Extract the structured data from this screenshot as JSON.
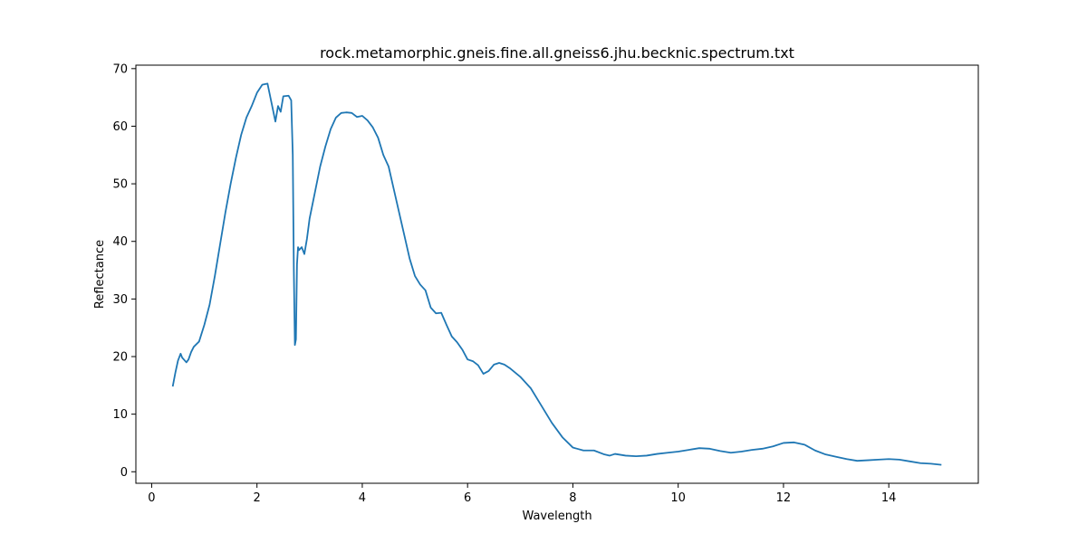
{
  "chart_data": {
    "type": "line",
    "title": "rock.metamorphic.gneis.fine.all.gneiss6.jhu.becknic.spectrum.txt",
    "xlabel": "Wavelength",
    "ylabel": "Reflectance",
    "xlim": [
      -0.3,
      15.7
    ],
    "ylim": [
      -2.0,
      70.6
    ],
    "xticks": [
      0,
      2,
      4,
      6,
      8,
      10,
      12,
      14
    ],
    "yticks": [
      0,
      10,
      20,
      30,
      40,
      50,
      60,
      70
    ],
    "grid": false,
    "legend": "none",
    "series": [
      {
        "color": "#1f77b4",
        "x": [
          0.4,
          0.45,
          0.5,
          0.55,
          0.58,
          0.62,
          0.66,
          0.7,
          0.75,
          0.8,
          0.9,
          1.0,
          1.1,
          1.2,
          1.3,
          1.4,
          1.5,
          1.6,
          1.7,
          1.8,
          1.9,
          2.0,
          2.1,
          2.2,
          2.3,
          2.35,
          2.4,
          2.45,
          2.5,
          2.6,
          2.65,
          2.68,
          2.7,
          2.72,
          2.74,
          2.76,
          2.78,
          2.8,
          2.85,
          2.9,
          2.95,
          3.0,
          3.1,
          3.2,
          3.3,
          3.4,
          3.5,
          3.6,
          3.7,
          3.8,
          3.9,
          4.0,
          4.1,
          4.2,
          4.3,
          4.4,
          4.5,
          4.6,
          4.7,
          4.8,
          4.9,
          5.0,
          5.1,
          5.2,
          5.3,
          5.4,
          5.5,
          5.6,
          5.7,
          5.8,
          5.9,
          6.0,
          6.1,
          6.2,
          6.3,
          6.4,
          6.5,
          6.6,
          6.7,
          6.8,
          7.0,
          7.2,
          7.4,
          7.6,
          7.8,
          8.0,
          8.2,
          8.4,
          8.6,
          8.7,
          8.8,
          9.0,
          9.2,
          9.4,
          9.6,
          9.8,
          10.0,
          10.2,
          10.4,
          10.6,
          10.8,
          11.0,
          11.2,
          11.4,
          11.6,
          11.8,
          12.0,
          12.2,
          12.4,
          12.6,
          12.8,
          13.0,
          13.2,
          13.4,
          13.6,
          13.8,
          14.0,
          14.2,
          14.4,
          14.6,
          14.8,
          15.0
        ],
        "values": [
          14.8,
          17.2,
          19.3,
          20.5,
          19.8,
          19.4,
          19.0,
          19.5,
          20.8,
          21.7,
          22.6,
          25.5,
          29.0,
          34.0,
          39.5,
          45.0,
          50.0,
          54.5,
          58.5,
          61.5,
          63.5,
          65.8,
          67.2,
          67.4,
          63.0,
          60.8,
          63.5,
          62.5,
          65.2,
          65.3,
          64.5,
          55.0,
          35.0,
          22.0,
          23.0,
          36.0,
          39.0,
          38.5,
          39.0,
          37.8,
          40.5,
          44.0,
          48.5,
          53.0,
          56.5,
          59.5,
          61.5,
          62.3,
          62.4,
          62.3,
          61.6,
          61.8,
          61.0,
          59.8,
          58.0,
          55.0,
          53.0,
          49.0,
          45.0,
          41.0,
          37.0,
          34.0,
          32.5,
          31.5,
          28.5,
          27.5,
          27.6,
          25.5,
          23.5,
          22.5,
          21.2,
          19.5,
          19.2,
          18.5,
          17.0,
          17.5,
          18.6,
          18.9,
          18.6,
          18.0,
          16.5,
          14.5,
          11.5,
          8.5,
          6.0,
          4.2,
          3.7,
          3.7,
          3.0,
          2.8,
          3.1,
          2.8,
          2.7,
          2.8,
          3.1,
          3.3,
          3.5,
          3.8,
          4.1,
          4.0,
          3.6,
          3.3,
          3.5,
          3.8,
          4.0,
          4.4,
          5.0,
          5.1,
          4.7,
          3.7,
          3.0,
          2.6,
          2.2,
          1.9,
          2.0,
          2.1,
          2.2,
          2.1,
          1.8,
          1.5,
          1.4,
          1.2
        ]
      }
    ]
  }
}
